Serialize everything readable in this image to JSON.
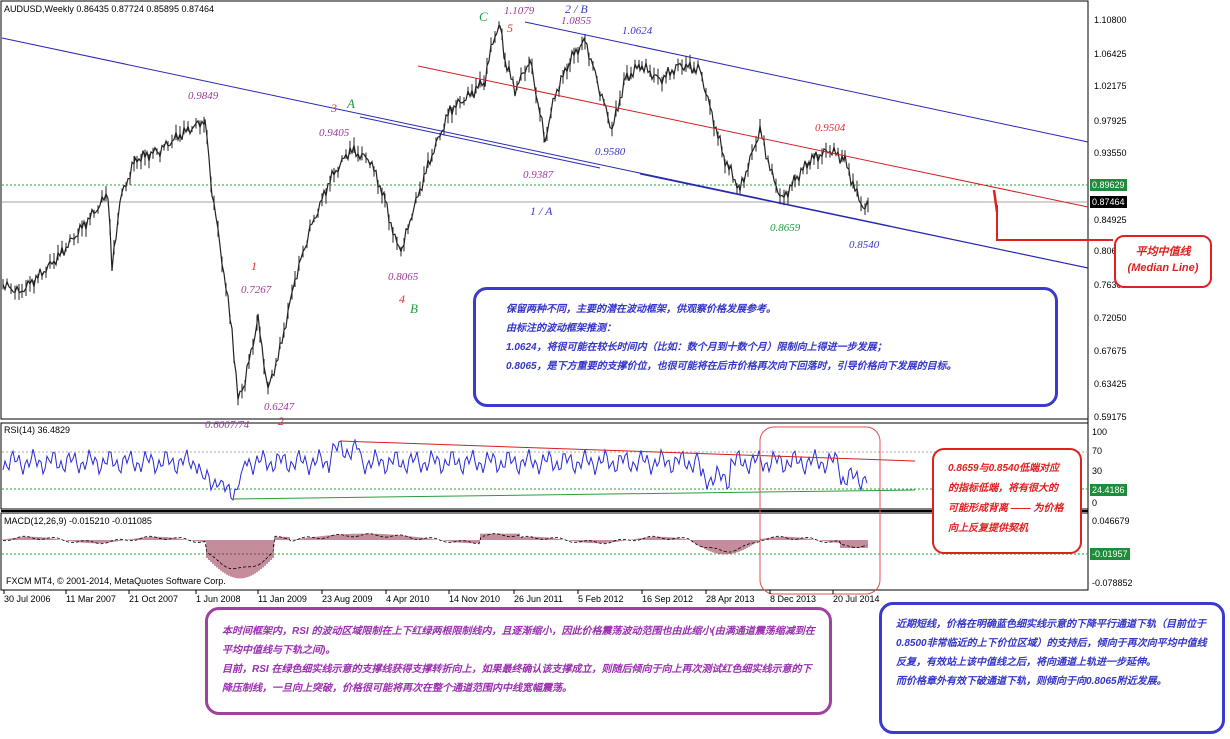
{
  "chart": {
    "title": "AUDUSD,Weekly  0.86435 0.87724 0.85895 0.87464",
    "copyright": "FXCM MT4, © 2001-2014, MetaQuotes Software Corp.",
    "price_axis": [
      "1.10800",
      "1.06425",
      "1.02175",
      "0.97925",
      "0.93550",
      "0.89300",
      "0.84925",
      "0.80675",
      "0.76300",
      "0.72050",
      "0.67675",
      "0.63425",
      "0.59175"
    ],
    "current_price": "0.87464",
    "level_price": "0.89629",
    "dates": [
      "30 Jul 2006",
      "11 Mar 2007",
      "21 Oct 2007",
      "1 Jun 2008",
      "11 Jan 2009",
      "23 Aug 2009",
      "4 Apr 2010",
      "14 Nov 2010",
      "26 Jun 2011",
      "5 Feb 2012",
      "16 Sep 2012",
      "28 Apr 2013",
      "8 Dec 2013",
      "20 Jul 2014"
    ],
    "price_labels": {
      "p09849": "0.9849",
      "p09405": "0.9405",
      "p11079": "1.1079",
      "p10855": "1.0855",
      "p10624": "1.0624",
      "p09580": "0.9580",
      "p09387": "0.9387",
      "p09504": "0.9504",
      "p08659": "0.8659",
      "p08540": "0.8540",
      "p07267": "0.7267",
      "p06247": "0.6247",
      "p06007": "0.6007/74",
      "p08065": "0.8065"
    },
    "wave_labels": {
      "c": "C",
      "five": "5",
      "two_b": "2 / B",
      "three": "3",
      "a": "A",
      "one_a": "1 / A",
      "one": "1",
      "two": "2",
      "four": "4",
      "b": "B"
    }
  },
  "rsi": {
    "header": "RSI(14) 36.4829",
    "axis": [
      "100",
      "70",
      "30",
      "0"
    ],
    "value_box": "24.4186"
  },
  "macd": {
    "header": "MACD(12,26,9) -0.015210 -0.011085",
    "axis": [
      "0.046679",
      "-0.01957",
      "-0.078852"
    ],
    "value_box": "-0.01957"
  },
  "notes": {
    "median_line": {
      "line1": "平均中值线",
      "line2": "(Median Line)"
    },
    "divergence": "0.8659与0.8540低端对应的指标低端，将有很大的可能形成背离 —— 为价格向上反复提供契机",
    "framework": [
      "保留两种不同，主要的潜在波动框架，供观察价格发展参考。",
      "由标注的波动框架推测：",
      "1.0624，将很可能在较长时间内（比如：数个月到十数个月）限制向上得进一步发展；",
      "0.8065，是下方重要的支撑价位，也很可能将在后市价格再次向下回落时，引导价格向下发展的目标。"
    ],
    "rsi_note": [
      "本时间框架内，RSI 的波动区域限制在上下红绿两根限制线内，且逐渐缩小，因此价格震荡波动范围也由此缩小(由满通道震荡缩减到在平均中值线与下轨之间)。",
      "目前，RSI 在绿色细实线示意的支撑线获得支撑转折向上，如果最终确认该支撑成立，则随后倾向于向上再次测试红色细实线示意的下降压制线，一旦向上突破，价格很可能将再次在整个通道范围内中线宽幅震荡。"
    ],
    "short_term": [
      "近期短线，价格在明确蓝色细实线示意的下降平行通道下轨（目前位于0.8500非常临近的上下价位区域）的支持后，倾向于再次向平均中值线反复，有效站上该中值线之后，将向通道上轨进一步延伸。",
      "而价格章外有效下破通道下轨，则倾向于向0.8065附近发展。"
    ]
  }
}
